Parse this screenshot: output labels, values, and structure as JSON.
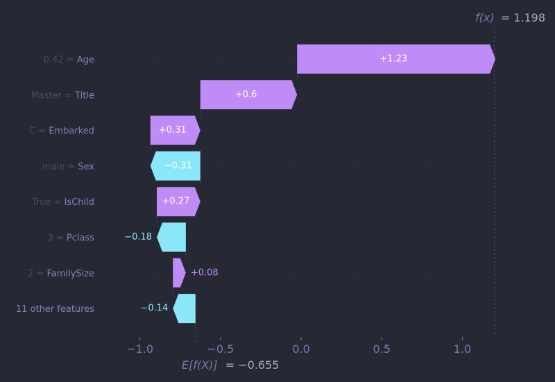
{
  "colors": {
    "background": "#262833",
    "positive": "#bf8cf7",
    "negative": "#8ae7fa",
    "feature_value": "#474c61",
    "feature_name": "#7a86ba",
    "tick_label": "#6f7cb2",
    "annotation": "#a9aab5",
    "bar_text": "#ffffff"
  },
  "chart_data": {
    "type": "bar",
    "orientation": "horizontal-waterfall",
    "base_value": -0.655,
    "final_value": 1.198,
    "fx_label": {
      "symbol": "f(x)",
      "value_text": "= 1.198"
    },
    "ex_label": {
      "symbol": "E[f(X)]",
      "value_text": "= −0.655"
    },
    "xlim": [
      -1.05,
      1.2
    ],
    "xticks": [
      {
        "value": -1.0,
        "label": "−1.0"
      },
      {
        "value": -0.5,
        "label": "−0.5"
      },
      {
        "value": 0.0,
        "label": "0.0"
      },
      {
        "value": 0.5,
        "label": "0.5"
      },
      {
        "value": 1.0,
        "label": "1.0"
      }
    ],
    "features": [
      {
        "value": "0.42",
        "name": "Age",
        "contribution": 1.23,
        "label": "+1.23"
      },
      {
        "value": "Master",
        "name": "Title",
        "contribution": 0.6,
        "label": "+0.6"
      },
      {
        "value": "C",
        "name": "Embarked",
        "contribution": 0.31,
        "label": "+0.31"
      },
      {
        "value": "male",
        "name": "Sex",
        "contribution": -0.31,
        "label": "−0.31"
      },
      {
        "value": "True",
        "name": "IsChild",
        "contribution": 0.27,
        "label": "+0.27"
      },
      {
        "value": "3",
        "name": "Pclass",
        "contribution": -0.18,
        "label": "−0.18"
      },
      {
        "value": "2",
        "name": "FamilySize",
        "contribution": 0.08,
        "label": "+0.08"
      },
      {
        "value": "",
        "name": "11 other features",
        "contribution": -0.14,
        "label": "−0.14"
      }
    ]
  }
}
